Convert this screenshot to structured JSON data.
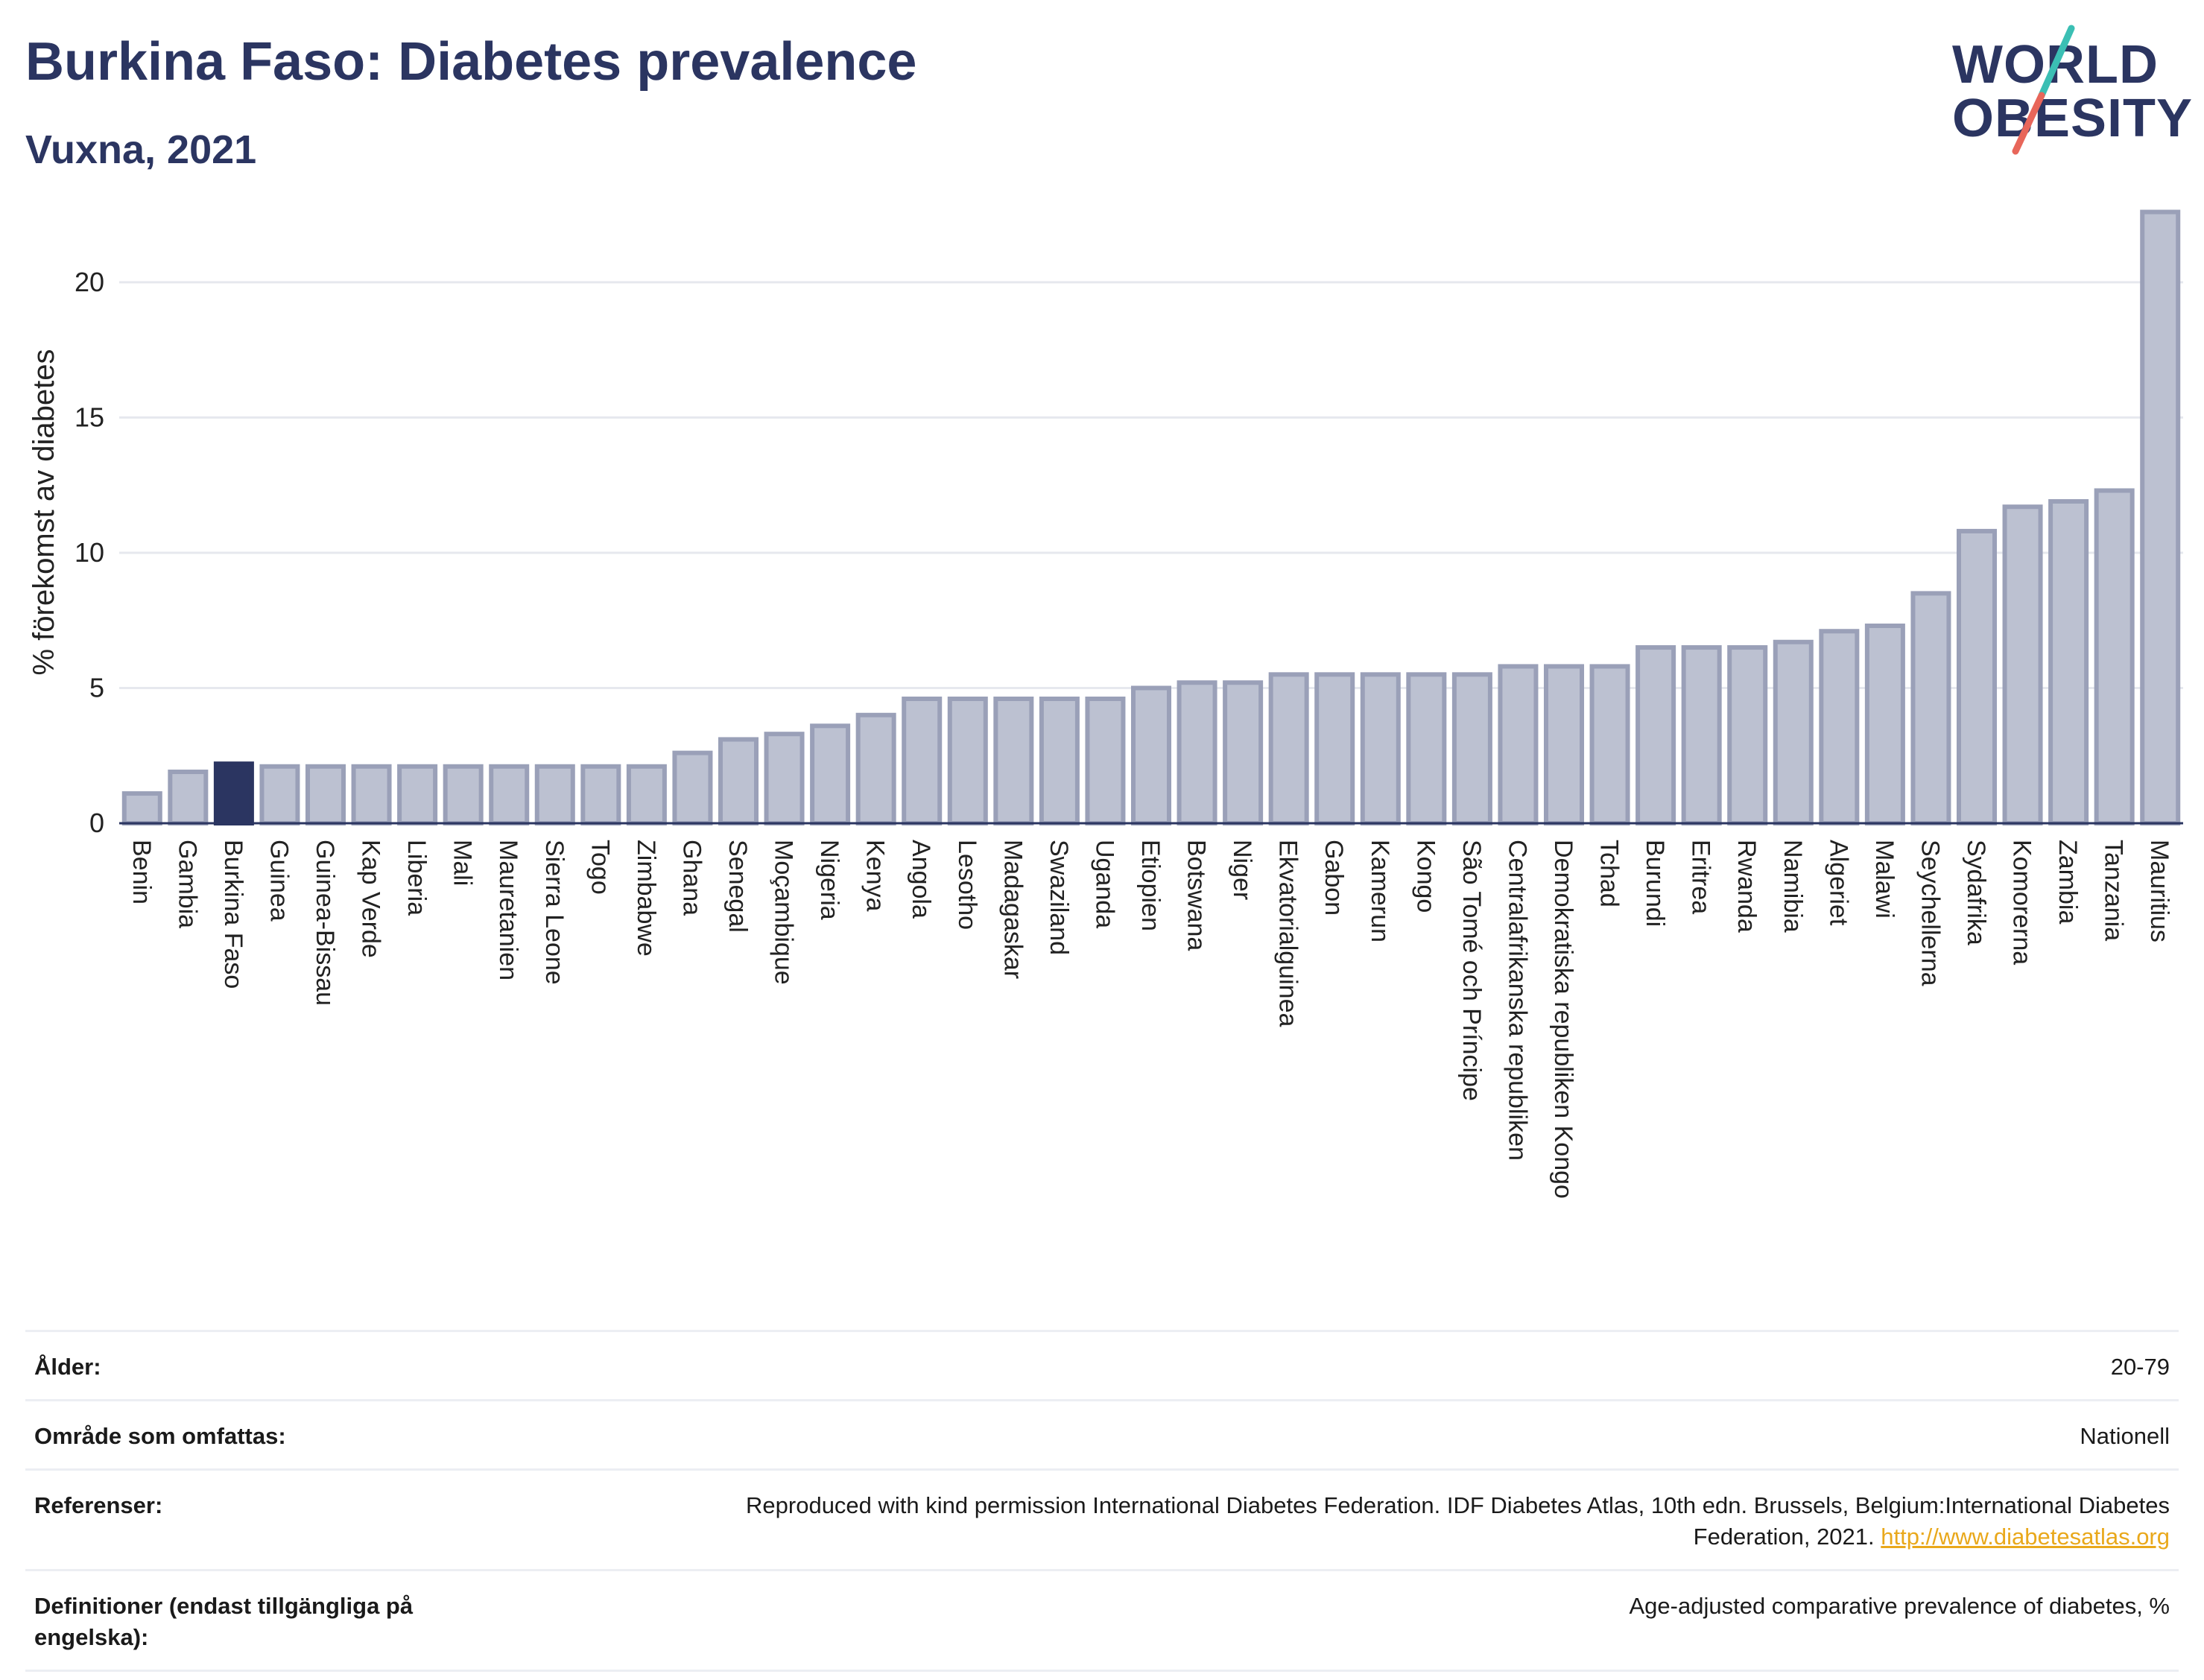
{
  "header": {
    "title": "Burkina Faso: Diabetes prevalence",
    "subtitle": "Vuxna, 2021"
  },
  "logo": {
    "line1": "WORLD",
    "line2": "OBESITY",
    "colors": {
      "text": "#2b3561",
      "slash_top": "#3bbfb4",
      "slash_bottom": "#e8665a"
    }
  },
  "colors": {
    "bar": "#bcc1d1",
    "bar_stroke": "#9aa0b8",
    "highlight": "#2b3561",
    "grid": "#e6e8ee",
    "axis": "#2b3561"
  },
  "chart_data": {
    "type": "bar",
    "title": "Burkina Faso: Diabetes prevalence",
    "subtitle": "Vuxna, 2021",
    "ylabel": "% förekomst av diabetes",
    "xlabel": "",
    "ylim": [
      0,
      23
    ],
    "yticks": [
      0,
      5,
      10,
      15,
      20
    ],
    "grid": true,
    "highlight_category": "Burkina Faso",
    "categories": [
      "Benin",
      "Gambia",
      "Burkina Faso",
      "Guinea",
      "Guinea-Bissau",
      "Kap Verde",
      "Liberia",
      "Mali",
      "Mauretanien",
      "Sierra Leone",
      "Togo",
      "Zimbabwe",
      "Ghana",
      "Senegal",
      "Moçambique",
      "Nigeria",
      "Kenya",
      "Angola",
      "Lesotho",
      "Madagaskar",
      "Swaziland",
      "Uganda",
      "Etiopien",
      "Botswana",
      "Niger",
      "Ekvatorialguinea",
      "Gabon",
      "Kamerun",
      "Kongo",
      "São Tomé och Príncipe",
      "Centralafrikanska republiken",
      "Demokratiska republiken Kongo",
      "Tchad",
      "Burundi",
      "Eritrea",
      "Rwanda",
      "Namibia",
      "Algeriet",
      "Malawi",
      "Seychellerna",
      "Sydafrika",
      "Komorerna",
      "Zambia",
      "Tanzania",
      "Mauritius"
    ],
    "values": [
      1.1,
      1.9,
      2.2,
      2.1,
      2.1,
      2.1,
      2.1,
      2.1,
      2.1,
      2.1,
      2.1,
      2.1,
      2.6,
      3.1,
      3.3,
      3.6,
      4.0,
      4.6,
      4.6,
      4.6,
      4.6,
      4.6,
      5.0,
      5.2,
      5.2,
      5.5,
      5.5,
      5.5,
      5.5,
      5.5,
      5.8,
      5.8,
      5.8,
      6.5,
      6.5,
      6.5,
      6.7,
      7.1,
      7.3,
      8.5,
      10.8,
      11.7,
      11.9,
      12.3,
      22.6
    ]
  },
  "meta": {
    "rows": [
      {
        "label": "Ålder:",
        "value": "20-79"
      },
      {
        "label": "Område som omfattas:",
        "value": "Nationell"
      },
      {
        "label": "Referenser:",
        "value": "Reproduced with kind permission International Diabetes Federation.  IDF Diabetes Atlas, 10th edn. Brussels, Belgium:International Diabetes Federation, 2021.",
        "link": "http://www.diabetesatlas.org"
      },
      {
        "label": "Definitioner (endast tillgängliga på engelska):",
        "value": "Age-adjusted comparative prevalence of diabetes, %"
      }
    ]
  }
}
